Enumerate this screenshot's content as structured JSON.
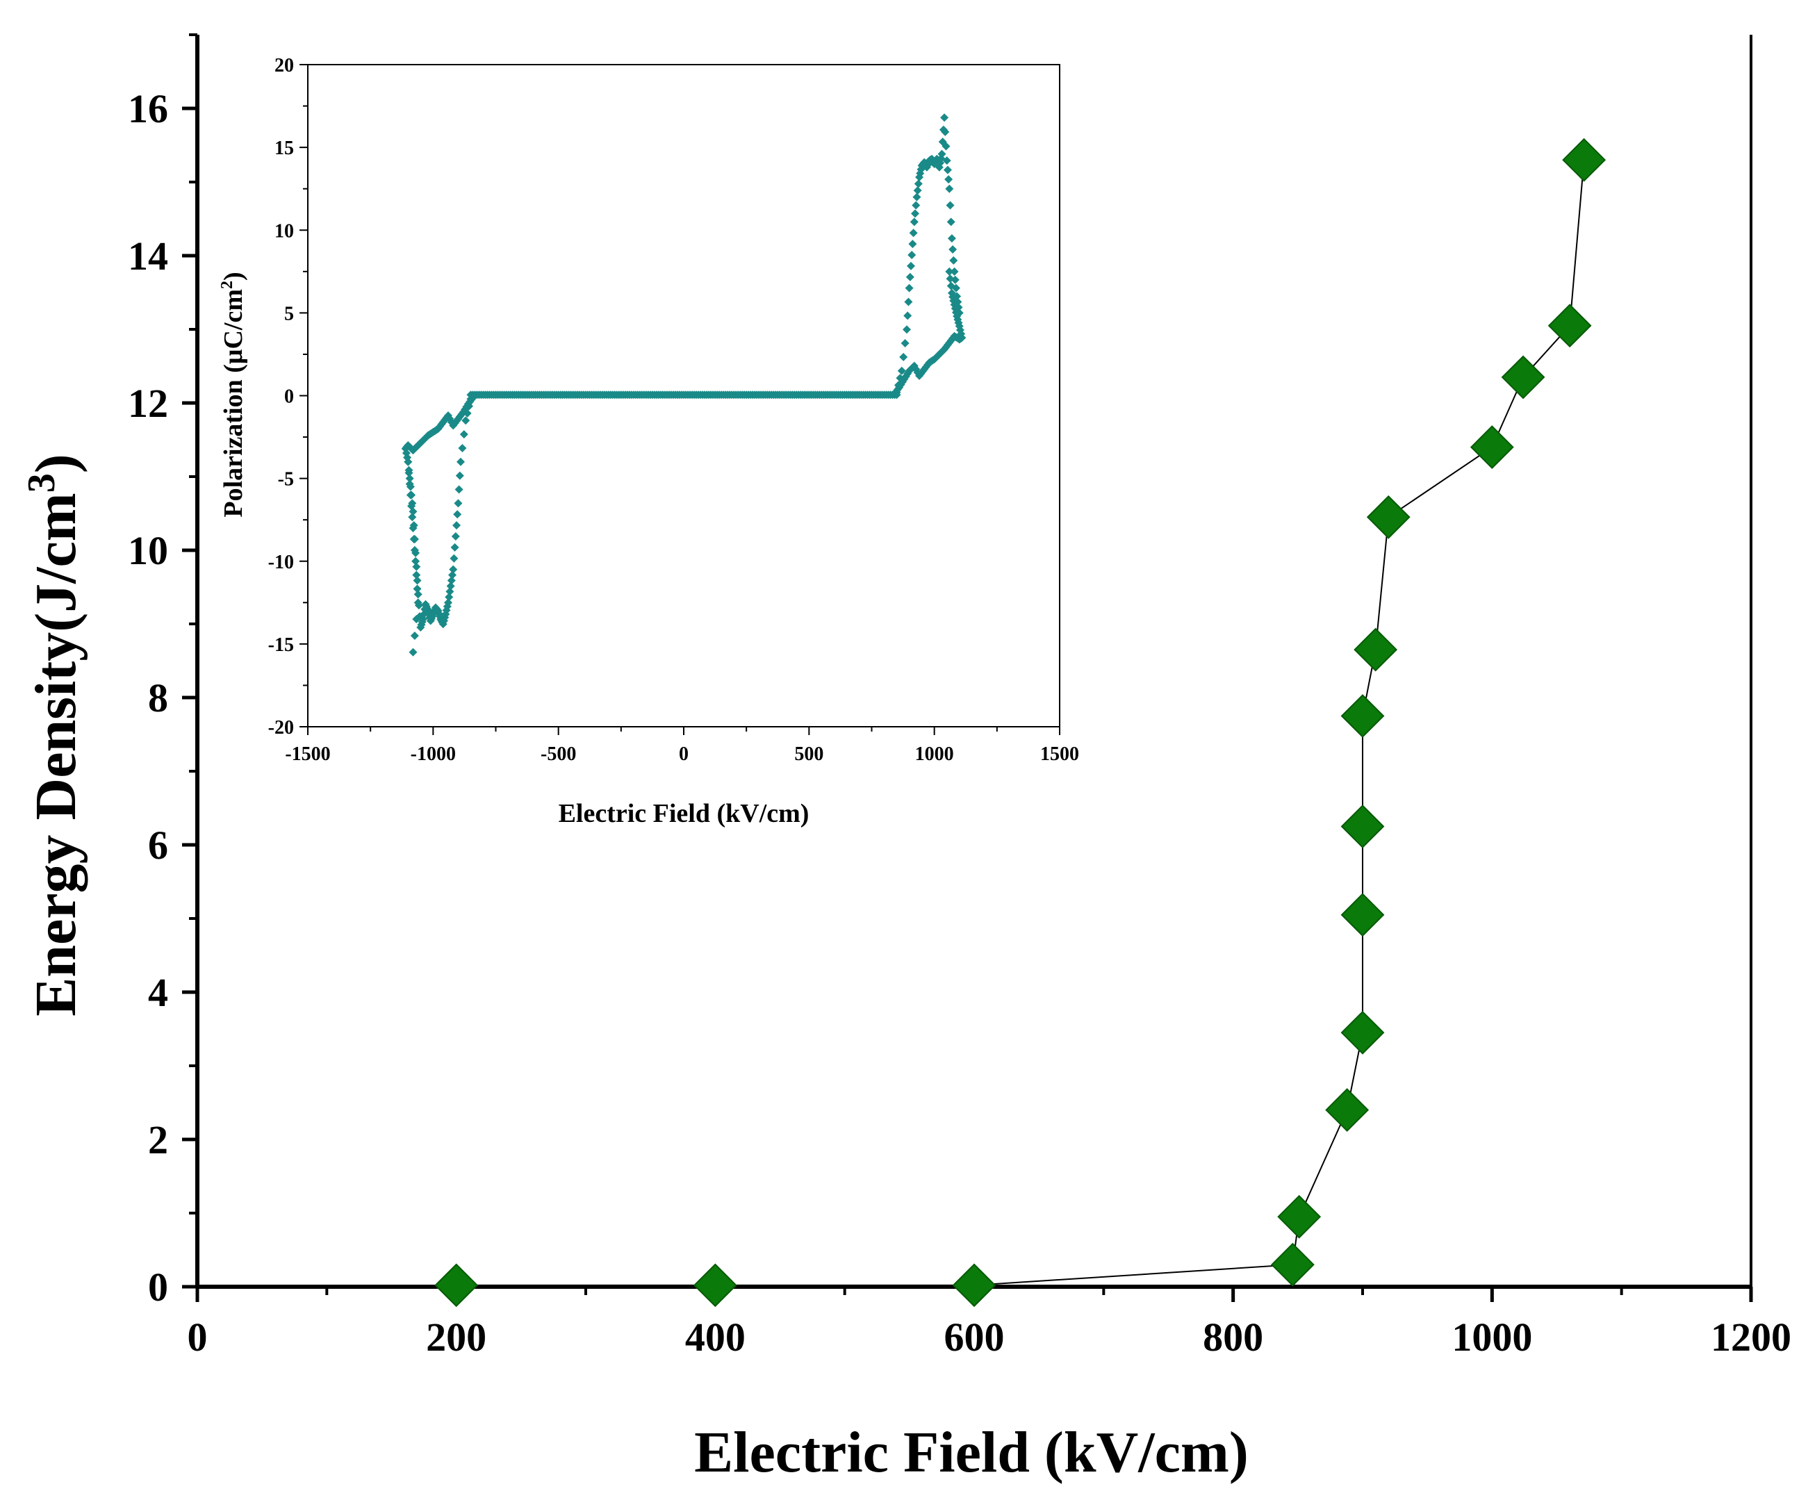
{
  "chart_data": [
    {
      "name": "main",
      "type": "line",
      "title": "",
      "xlabel": "Electric Field (kV/cm)",
      "ylabel": "Energy Density(J/cm",
      "ylabel_superscript": "3",
      "ylabel_suffix": ")",
      "xlim": [
        0,
        1200
      ],
      "ylim": [
        0,
        17
      ],
      "xticks": [
        0,
        200,
        400,
        600,
        800,
        1000,
        1200
      ],
      "xtick_labels": [
        "0",
        "200",
        "400",
        "600",
        "800",
        "1000",
        "1200"
      ],
      "yticks": [
        0,
        2,
        4,
        6,
        8,
        10,
        12,
        14,
        16
      ],
      "ytick_labels": [
        "0",
        "2",
        "4",
        "6",
        "8",
        "10",
        "12",
        "14",
        "16"
      ],
      "grid": false,
      "marker": "diamond",
      "color": "#0a7a0a",
      "x": [
        200,
        400,
        600,
        846,
        851,
        888,
        900,
        900,
        900,
        900,
        910,
        920,
        1000,
        1024,
        1060,
        1071
      ],
      "y": [
        0.02,
        0.02,
        0.02,
        0.3,
        0.95,
        2.4,
        3.45,
        5.05,
        6.25,
        7.75,
        8.65,
        10.45,
        11.4,
        12.35,
        13.05,
        15.3
      ]
    },
    {
      "name": "inset",
      "type": "scatter",
      "title": "",
      "xlabel": "Electric Field (kV/cm)",
      "ylabel": "Polarization (μC/cm",
      "ylabel_superscript": "2",
      "ylabel_suffix": ")",
      "xlim": [
        -1500,
        1500
      ],
      "ylim": [
        -20,
        20
      ],
      "xticks": [
        -1500,
        -1000,
        -500,
        0,
        500,
        1000,
        1500
      ],
      "xtick_labels": [
        "-1500",
        "-1000",
        "-500",
        "0",
        "500",
        "1000",
        "1500"
      ],
      "yticks": [
        -20,
        -15,
        -10,
        -5,
        0,
        5,
        10,
        15,
        20
      ],
      "ytick_labels": [
        "-20",
        "-15",
        "-10",
        "-5",
        "0",
        "5",
        "10",
        "15",
        "20"
      ],
      "grid": false,
      "marker": "diamond",
      "color": "#1a8a88",
      "series": [
        {
          "name": "positive-branch-upper",
          "x": [
            850,
            870,
            890,
            900,
            910,
            920,
            930,
            940,
            950,
            960,
            970,
            980,
            990,
            1000,
            1010,
            1020,
            1030,
            1040,
            1050,
            1060,
            1070,
            1080,
            1090,
            1100
          ],
          "y": [
            0.2,
            1.5,
            4.0,
            6.5,
            8.5,
            10.5,
            12.0,
            13.2,
            13.9,
            14.1,
            13.8,
            14.2,
            14.3,
            14.0,
            14.3,
            13.8,
            14.6,
            16.8,
            14.2,
            12.5,
            9.5,
            7.5,
            6.0,
            5.0
          ]
        },
        {
          "name": "positive-branch-lower",
          "x": [
            840,
            860,
            880,
            900,
            920,
            940,
            960,
            980,
            1000,
            1020,
            1040,
            1060,
            1080,
            1100,
            1110,
            1100,
            1090,
            1080,
            1070,
            1060
          ],
          "y": [
            0.1,
            0.5,
            1.0,
            1.5,
            1.8,
            1.2,
            1.6,
            2.0,
            2.2,
            2.5,
            2.8,
            3.2,
            3.6,
            3.4,
            3.5,
            4.2,
            4.8,
            5.5,
            6.2,
            7.5
          ]
        },
        {
          "name": "negative-branch-lower",
          "x": [
            -850,
            -870,
            -890,
            -900,
            -910,
            -920,
            -930,
            -940,
            -950,
            -960,
            -970,
            -980,
            -990,
            -1000,
            -1010,
            -1020,
            -1030,
            -1040,
            -1050,
            -1060,
            -1070,
            -1080,
            -1090,
            -1100
          ],
          "y": [
            -0.2,
            -1.5,
            -4.0,
            -6.5,
            -8.5,
            -10.5,
            -11.5,
            -12.5,
            -13.2,
            -13.8,
            -13.5,
            -13.0,
            -12.8,
            -13.2,
            -13.6,
            -13.0,
            -12.6,
            -13.5,
            -14.0,
            -12.0,
            -9.5,
            -7.0,
            -5.5,
            -4.0
          ]
        },
        {
          "name": "negative-branch-upper",
          "x": [
            -840,
            -860,
            -880,
            -900,
            -920,
            -940,
            -960,
            -980,
            -1000,
            -1020,
            -1040,
            -1060,
            -1080,
            -1100,
            -1110,
            -1100,
            -1090,
            -1080,
            -1070,
            -1060,
            -1080
          ],
          "y": [
            -0.1,
            -0.5,
            -1.0,
            -1.4,
            -1.8,
            -1.2,
            -1.6,
            -2.0,
            -2.2,
            -2.4,
            -2.7,
            -3.0,
            -3.3,
            -3.0,
            -3.2,
            -4.0,
            -6.0,
            -8.0,
            -10.0,
            -12.5,
            -15.5
          ]
        },
        {
          "name": "plateau",
          "x": [
            -850,
            -800,
            -750,
            -700,
            -650,
            -600,
            -550,
            -500,
            -450,
            -400,
            -350,
            -300,
            -250,
            -200,
            -150,
            -100,
            -50,
            0,
            50,
            100,
            150,
            200,
            250,
            300,
            350,
            400,
            450,
            500,
            550,
            600,
            650,
            700,
            750,
            800,
            850
          ],
          "y": [
            0.05,
            0.05,
            0.05,
            0.05,
            0.05,
            0.05,
            0.05,
            0.05,
            0.05,
            0.05,
            0.05,
            0.05,
            0.05,
            0.05,
            0.05,
            0.05,
            0.05,
            0.05,
            0.05,
            0.05,
            0.05,
            0.05,
            0.05,
            0.05,
            0.05,
            0.05,
            0.05,
            0.05,
            0.05,
            0.05,
            0.05,
            0.05,
            0.05,
            0.05,
            0.05
          ]
        }
      ]
    }
  ]
}
